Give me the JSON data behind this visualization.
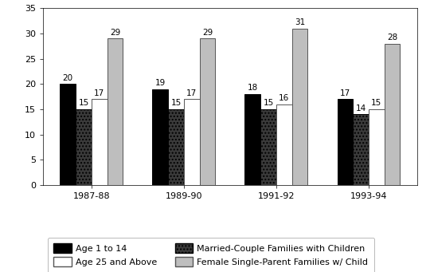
{
  "categories": [
    "1987-88",
    "1989-90",
    "1991-92",
    "1993-94"
  ],
  "series_order": [
    "Age 1 to 14",
    "Married-Couple Families with Children",
    "Age 25 and Above",
    "Female Single-Parent Families w/ Child"
  ],
  "series": {
    "Age 1 to 14": [
      20,
      19,
      18,
      17
    ],
    "Married-Couple Families with Children": [
      15,
      15,
      15,
      14
    ],
    "Age 25 and Above": [
      17,
      17,
      16,
      15
    ],
    "Female Single-Parent Families w/ Child": [
      29,
      29,
      31,
      28
    ]
  },
  "colors": {
    "Age 1 to 14": "#000000",
    "Married-Couple Families with Children": "#3a3a3a",
    "Age 25 and Above": "#ffffff",
    "Female Single-Parent Families w/ Child": "#bebebe"
  },
  "hatches": {
    "Age 1 to 14": "",
    "Married-Couple Families with Children": "....",
    "Age 25 and Above": "",
    "Female Single-Parent Families w/ Child": ""
  },
  "edgecolors": {
    "Age 1 to 14": "#000000",
    "Married-Couple Families with Children": "#000000",
    "Age 25 and Above": "#555555",
    "Female Single-Parent Families w/ Child": "#555555"
  },
  "ylim": [
    0,
    35
  ],
  "yticks": [
    0,
    5,
    10,
    15,
    20,
    25,
    30,
    35
  ],
  "bar_width": 0.17,
  "label_fontsize": 7.5,
  "tick_fontsize": 8,
  "legend_fontsize": 8,
  "background_color": "#ffffff"
}
